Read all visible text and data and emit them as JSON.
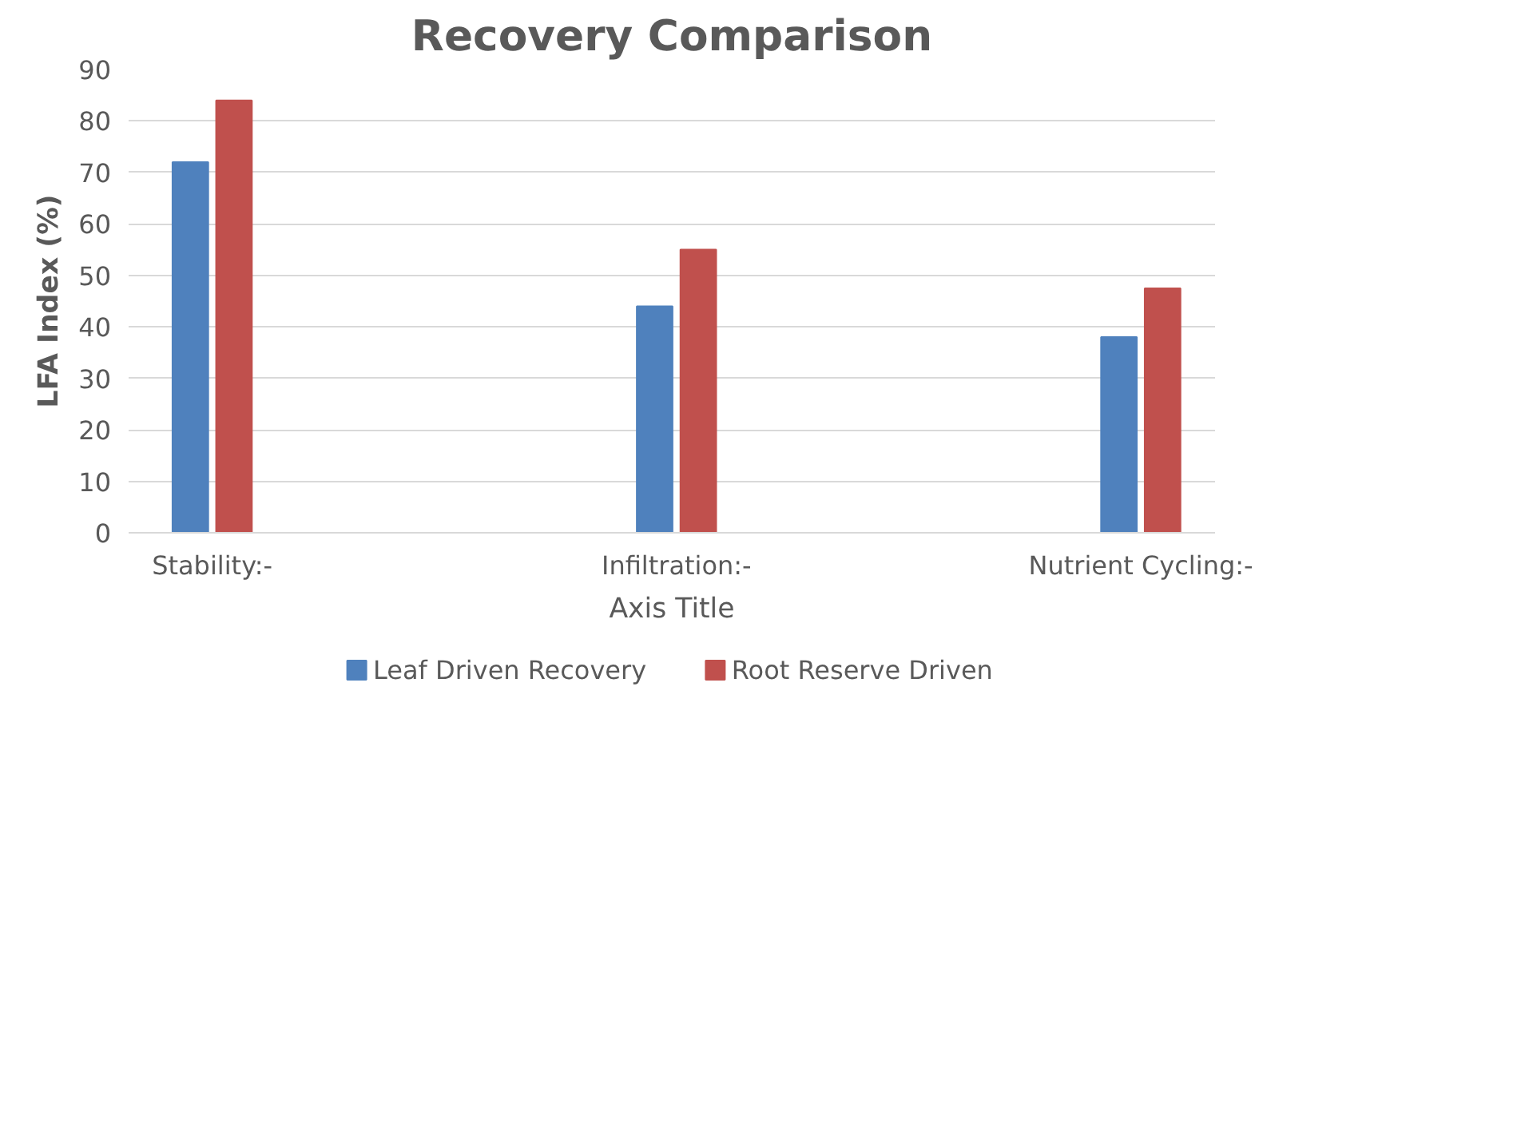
{
  "chart_data": {
    "type": "bar",
    "title": "Recovery Comparison",
    "xlabel": "Axis Title",
    "ylabel": "LFA Index (%)",
    "categories": [
      "Stability:-",
      "Infiltration:-",
      "Nutrient Cycling:-"
    ],
    "series": [
      {
        "name": "Leaf Driven Recovery",
        "color": "#4f81bd",
        "values": [
          72,
          44,
          38
        ]
      },
      {
        "name": "Root Reserve Driven",
        "color": "#c0504d",
        "values": [
          84,
          55,
          47.5
        ]
      }
    ],
    "ylim": [
      0,
      90
    ],
    "yticks": [
      0,
      10,
      20,
      30,
      40,
      50,
      60,
      70,
      80,
      90
    ],
    "grid": "y",
    "legend": "bottom"
  }
}
